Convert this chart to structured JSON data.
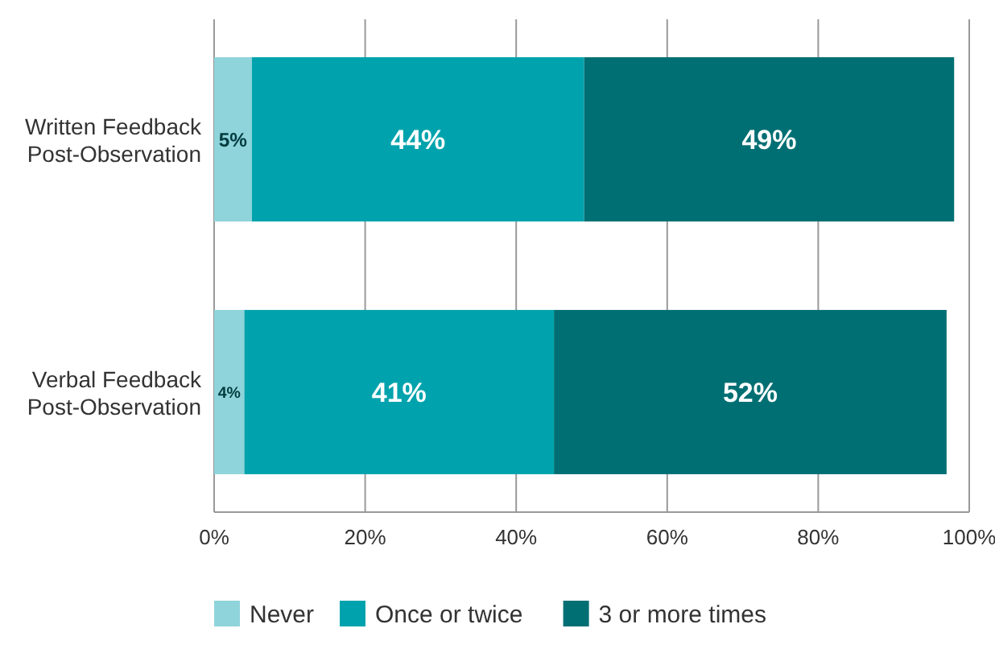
{
  "chart_data": {
    "type": "bar",
    "orientation": "horizontal",
    "stacked": true,
    "categories": [
      "Written Feedback Post-Observation",
      "Verbal Feedback Post-Observation"
    ],
    "series": [
      {
        "name": "Never",
        "color": "#8fd4da",
        "values": [
          5,
          4
        ],
        "value_labels": [
          "5%",
          "4%"
        ]
      },
      {
        "name": "Once or twice",
        "color": "#00a3ad",
        "values": [
          44,
          41
        ],
        "value_labels": [
          "44%",
          "41%"
        ]
      },
      {
        "name": "3 or more times",
        "color": "#006f73",
        "values": [
          49,
          52
        ],
        "value_labels": [
          "49%",
          "52%"
        ]
      }
    ],
    "xlim": [
      0,
      100
    ],
    "xticks": [
      {
        "value": 0,
        "label": "0%"
      },
      {
        "value": 20,
        "label": "20%"
      },
      {
        "value": 40,
        "label": "40%"
      },
      {
        "value": 60,
        "label": "60%"
      },
      {
        "value": 80,
        "label": "80%"
      },
      {
        "value": 100,
        "label": "100%"
      }
    ],
    "grid": "x",
    "legend": "bottom"
  }
}
